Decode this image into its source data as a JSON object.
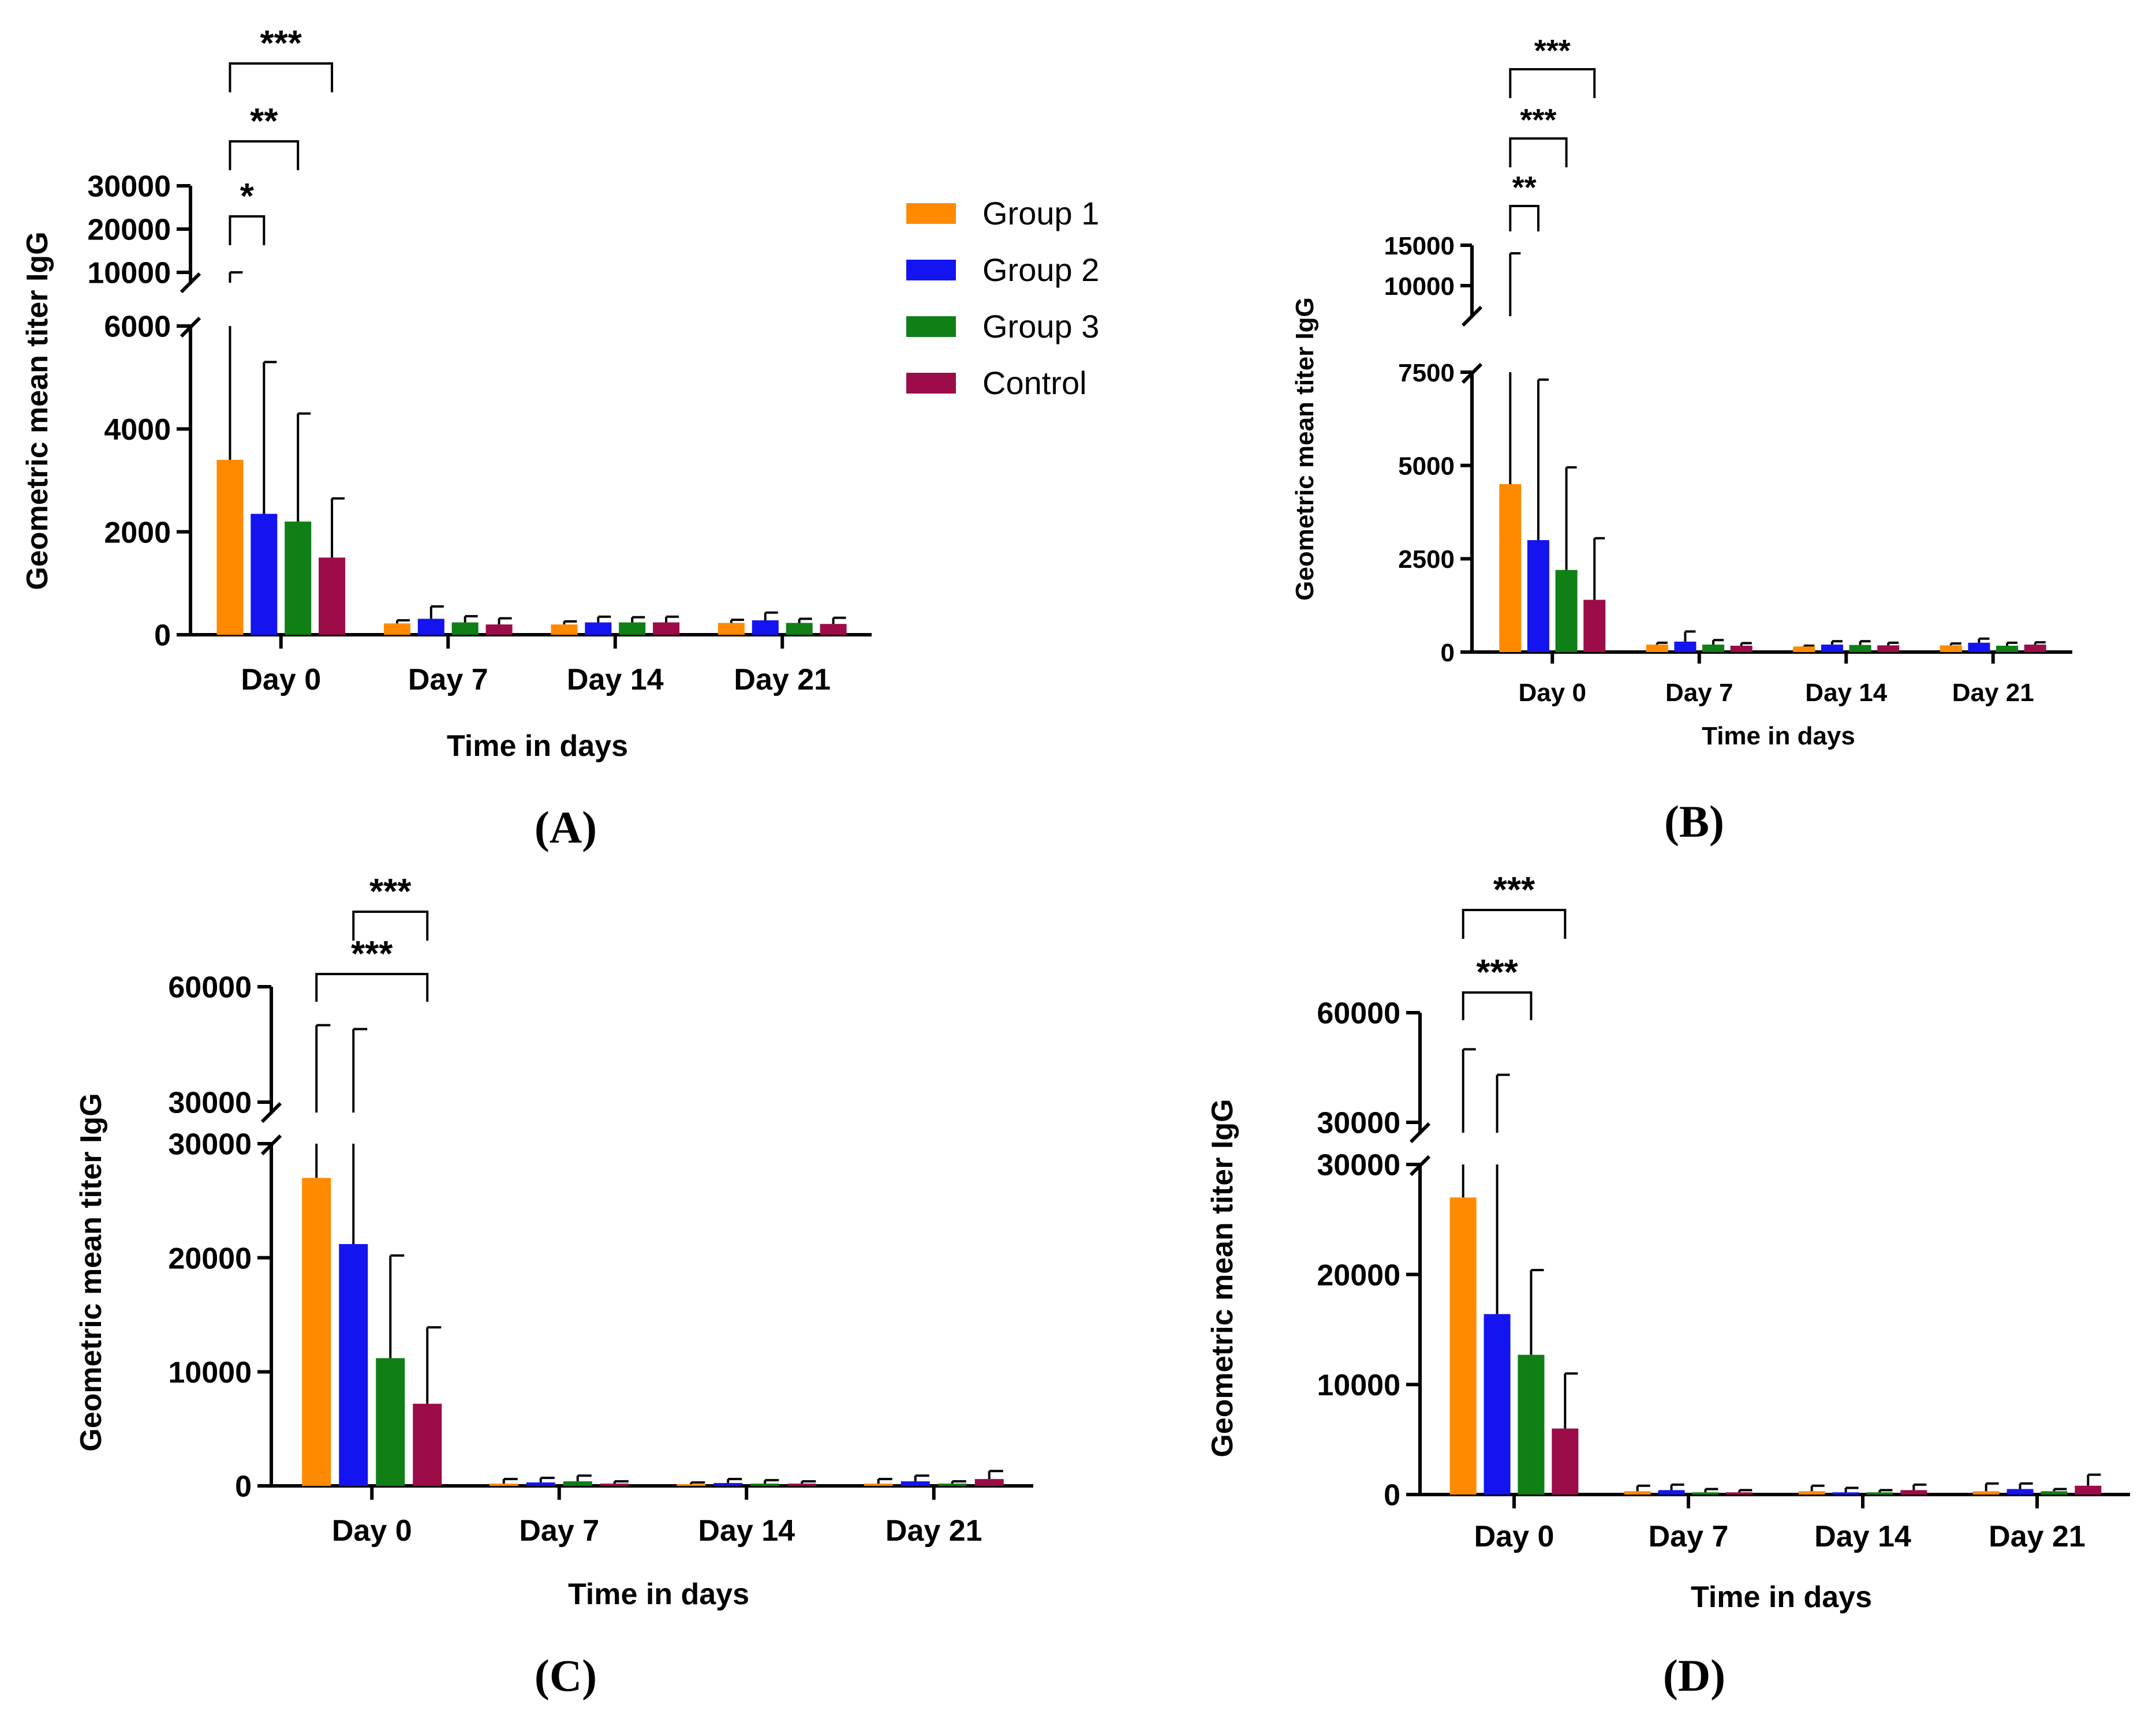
{
  "legend": [
    {
      "name": "Group 1",
      "color": "#FF8A00"
    },
    {
      "name": "Group 2",
      "color": "#1414F0"
    },
    {
      "name": "Group 3",
      "color": "#0F7F16"
    },
    {
      "name": "Control",
      "color": "#9B0C48"
    }
  ],
  "chart_data": [
    {
      "id": "A",
      "panel_label": "(A)",
      "type": "bar",
      "xlabel": "Time in days",
      "ylabel": "Geometric mean titer IgG",
      "categories": [
        "Day 0",
        "Day 7",
        "Day 14",
        "Day 21"
      ],
      "y_axis_lower": {
        "ylim": [
          0,
          6000
        ],
        "ticks": [
          0,
          2000,
          4000,
          6000
        ],
        "tick_labels": [
          "0",
          "2000",
          "4000",
          "6000"
        ]
      },
      "y_axis_upper": {
        "ylim": [
          10000,
          30000
        ],
        "ticks": [
          10000,
          20000,
          30000
        ],
        "tick_labels": [
          "10000",
          "20000",
          "30000"
        ]
      },
      "series": [
        {
          "name": "Group 1",
          "values": [
            3400,
            220,
            200,
            230
          ],
          "err_top": [
            10000,
            280,
            260,
            290
          ]
        },
        {
          "name": "Group 2",
          "values": [
            2350,
            310,
            240,
            280
          ],
          "err_top": [
            5300,
            550,
            350,
            430
          ]
        },
        {
          "name": "Group 3",
          "values": [
            2200,
            240,
            240,
            230
          ],
          "err_top": [
            4300,
            360,
            340,
            310
          ]
        },
        {
          "name": "Control",
          "values": [
            1500,
            200,
            240,
            210
          ],
          "err_top": [
            2650,
            320,
            350,
            330
          ]
        }
      ],
      "significance": [
        {
          "from": "Group 1",
          "to": "Group 2",
          "label": "*"
        },
        {
          "from": "Group 1",
          "to": "Group 3",
          "label": "**"
        },
        {
          "from": "Group 1",
          "to": "Control",
          "label": "***"
        }
      ]
    },
    {
      "id": "B",
      "panel_label": "(B)",
      "type": "bar",
      "xlabel": "Time in days",
      "ylabel": "Geometric mean titer IgG",
      "categories": [
        "Day 0",
        "Day 7",
        "Day 14",
        "Day 21"
      ],
      "y_axis_lower": {
        "ylim": [
          0,
          7500
        ],
        "ticks": [
          0,
          2500,
          5000,
          7500
        ],
        "tick_labels": [
          "0",
          "2500",
          "5000",
          "7500"
        ]
      },
      "y_axis_upper": {
        "ylim": [
          7500,
          15000
        ],
        "ticks": [
          10000,
          15000
        ],
        "tick_labels": [
          "10000",
          "15000"
        ]
      },
      "series": [
        {
          "name": "Group 1",
          "values": [
            4500,
            200,
            150,
            180
          ],
          "err_top": [
            14000,
            250,
            170,
            230
          ]
        },
        {
          "name": "Group 2",
          "values": [
            3000,
            280,
            200,
            250
          ],
          "err_top": [
            7300,
            550,
            290,
            360
          ]
        },
        {
          "name": "Group 3",
          "values": [
            2200,
            200,
            190,
            170
          ],
          "err_top": [
            4950,
            320,
            290,
            250
          ]
        },
        {
          "name": "Control",
          "values": [
            1400,
            170,
            180,
            200
          ],
          "err_top": [
            3050,
            240,
            250,
            260
          ]
        }
      ],
      "significance": [
        {
          "from": "Group 1",
          "to": "Group 2",
          "label": "**"
        },
        {
          "from": "Group 1",
          "to": "Group 3",
          "label": "***"
        },
        {
          "from": "Group 1",
          "to": "Control",
          "label": "***"
        }
      ]
    },
    {
      "id": "C",
      "panel_label": "(C)",
      "type": "bar",
      "xlabel": "Time in days",
      "ylabel": "Geometric mean titer IgG",
      "categories": [
        "Day 0",
        "Day 7",
        "Day 14",
        "Day 21"
      ],
      "y_axis_lower": {
        "ylim": [
          0,
          30000
        ],
        "ticks": [
          0,
          10000,
          20000,
          30000
        ],
        "tick_labels": [
          "0",
          "10000",
          "20000",
          "30000"
        ]
      },
      "y_axis_upper": {
        "ylim": [
          30000,
          60000
        ],
        "ticks": [
          30000,
          60000
        ],
        "tick_labels": [
          "30000",
          "60000"
        ]
      },
      "series": [
        {
          "name": "Group 1",
          "values": [
            27000,
            200,
            150,
            200
          ],
          "err_top": [
            50000,
            600,
            300,
            600
          ]
        },
        {
          "name": "Group 2",
          "values": [
            21200,
            300,
            250,
            400
          ],
          "err_top": [
            49000,
            700,
            600,
            900
          ]
        },
        {
          "name": "Group 3",
          "values": [
            11200,
            400,
            200,
            200
          ],
          "err_top": [
            20200,
            900,
            500,
            400
          ]
        },
        {
          "name": "Control",
          "values": [
            7200,
            200,
            200,
            600
          ],
          "err_top": [
            13900,
            400,
            400,
            1300
          ]
        }
      ],
      "significance": [
        {
          "from": "Group 1",
          "to": "Control",
          "label": "***"
        },
        {
          "from": "Group 2",
          "to": "Control",
          "label": "***"
        }
      ]
    },
    {
      "id": "D",
      "panel_label": "(D)",
      "type": "bar",
      "xlabel": "Time in days",
      "ylabel": "Geometric mean titer IgG",
      "categories": [
        "Day 0",
        "Day 7",
        "Day 14",
        "Day 21"
      ],
      "y_axis_lower": {
        "ylim": [
          0,
          30000
        ],
        "ticks": [
          0,
          10000,
          20000,
          30000
        ],
        "tick_labels": [
          "0",
          "10000",
          "20000",
          "30000"
        ]
      },
      "y_axis_upper": {
        "ylim": [
          30000,
          60000
        ],
        "ticks": [
          30000,
          60000
        ],
        "tick_labels": [
          "30000",
          "60000"
        ]
      },
      "series": [
        {
          "name": "Group 1",
          "values": [
            27000,
            300,
            300,
            300
          ],
          "err_top": [
            50000,
            800,
            800,
            1000
          ]
        },
        {
          "name": "Group 2",
          "values": [
            16400,
            400,
            200,
            500
          ],
          "err_top": [
            43000,
            900,
            600,
            1000
          ]
        },
        {
          "name": "Group 3",
          "values": [
            12700,
            200,
            200,
            300
          ],
          "err_top": [
            20400,
            500,
            400,
            500
          ]
        },
        {
          "name": "Control",
          "values": [
            6000,
            200,
            400,
            800
          ],
          "err_top": [
            11000,
            400,
            900,
            1800
          ]
        }
      ],
      "significance": [
        {
          "from": "Group 1",
          "to": "Group 3",
          "label": "***"
        },
        {
          "from": "Group 1",
          "to": "Control",
          "label": "***"
        }
      ]
    }
  ]
}
